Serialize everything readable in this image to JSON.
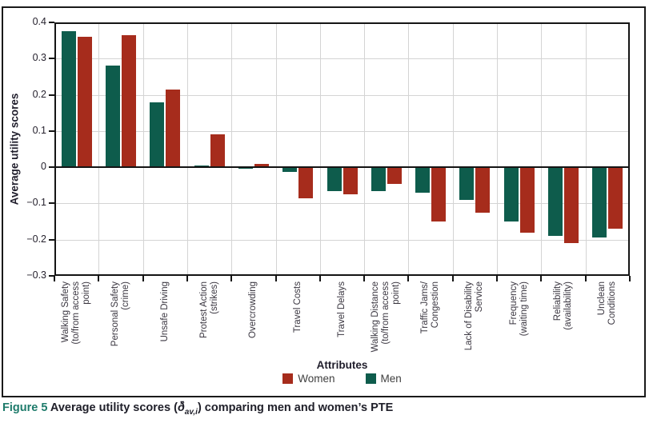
{
  "caption": {
    "figure_label": "Figure 5",
    "text_before_symbol": " Average utility scores (",
    "symbol": "ð̄",
    "symbol_subscript": "av,i",
    "text_after_symbol": ") comparing men and women’s PTE"
  },
  "chart_data": {
    "type": "bar",
    "title": "",
    "xlabel": "Attributes",
    "ylabel": "Average utility scores",
    "ylim": [
      -0.3,
      0.4
    ],
    "grid": true,
    "legend_position": "bottom",
    "y_ticks": [
      0.4,
      0.3,
      0.2,
      0.1,
      0,
      -0.1,
      -0.2,
      -0.3
    ],
    "y_tick_labels": [
      "0.4",
      "0.3",
      "0.2",
      "0.1",
      "0",
      "−0.1",
      "−0.2",
      "−0.3"
    ],
    "categories": [
      "Walking Safety (to/from access point)",
      "Personal Safety (crime)",
      "Unsafe Driving",
      "Protest Action (strikes)",
      "Overcrowding",
      "Travel Costs",
      "Travel Delays",
      "Walking Distance (to/from access point)",
      "Traffic Jams/ Congestion",
      "Lack of Disability Service",
      "Frequency (waiting time)",
      "Reliability (availability)",
      "Unclean Conditions"
    ],
    "category_lines": [
      [
        "Walking Safety",
        "(to/from access",
        "point)"
      ],
      [
        "Personal Safety",
        "(crime)"
      ],
      [
        "Unsafe Driving"
      ],
      [
        "Protest Action",
        "(strikes)"
      ],
      [
        "Overcrowding"
      ],
      [
        "Travel Costs"
      ],
      [
        "Travel Delays"
      ],
      [
        "Walking Distance",
        "(to/from access",
        "point)"
      ],
      [
        "Traffic Jams/",
        "Congestion"
      ],
      [
        "Lack of Disability",
        "Service"
      ],
      [
        "Frequency",
        "(waiting time)"
      ],
      [
        "Reliability",
        "(availability)"
      ],
      [
        "Unclean",
        "Conditions"
      ]
    ],
    "series": [
      {
        "name": "Men",
        "color": "#0E5C4C",
        "values": [
          0.375,
          0.28,
          0.18,
          0.005,
          -0.005,
          -0.012,
          -0.065,
          -0.065,
          -0.07,
          -0.09,
          -0.15,
          -0.19,
          -0.195
        ]
      },
      {
        "name": "Women",
        "color": "#A62C1C",
        "values": [
          0.36,
          0.365,
          0.215,
          0.09,
          0.01,
          -0.085,
          -0.075,
          -0.045,
          -0.15,
          -0.125,
          -0.18,
          -0.21,
          -0.17
        ]
      }
    ],
    "legend": [
      {
        "label": "Women",
        "color": "#A62C1C"
      },
      {
        "label": "Men",
        "color": "#0E5C4C"
      }
    ],
    "colors": {
      "men": "#0E5C4C",
      "women": "#A62C1C",
      "gridline": "#d4d4d4",
      "axis": "#141414",
      "caption_accent": "#1e7b6b"
    }
  }
}
